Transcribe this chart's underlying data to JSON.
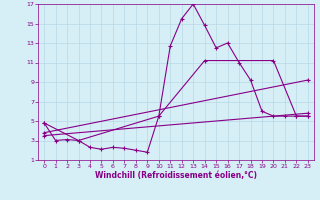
{
  "xlabel": "Windchill (Refroidissement éolien,°C)",
  "background_color": "#d6eef5",
  "line_color": "#880088",
  "grid_color": "#b8d8e8",
  "xlim": [
    -0.5,
    23.5
  ],
  "ylim": [
    1,
    17
  ],
  "xticks": [
    0,
    1,
    2,
    3,
    4,
    5,
    6,
    7,
    8,
    9,
    10,
    11,
    12,
    13,
    14,
    15,
    16,
    17,
    18,
    19,
    20,
    21,
    22,
    23
  ],
  "yticks": [
    1,
    3,
    5,
    7,
    9,
    11,
    13,
    15,
    17
  ],
  "series": [
    {
      "x": [
        0,
        1,
        2,
        3,
        4,
        5,
        6,
        7,
        8,
        9,
        10,
        11,
        12,
        13,
        14,
        15,
        16,
        17,
        18,
        19,
        20,
        21,
        22,
        23
      ],
      "y": [
        4.8,
        3.0,
        3.1,
        3.0,
        2.3,
        2.1,
        2.3,
        2.2,
        2.0,
        1.8,
        5.5,
        12.7,
        15.5,
        17.0,
        14.8,
        12.5,
        13.0,
        11.0,
        9.2,
        6.0,
        5.5,
        5.5,
        5.5,
        5.5
      ]
    },
    {
      "x": [
        0,
        3,
        10,
        14,
        20,
        22,
        23
      ],
      "y": [
        4.8,
        3.0,
        5.5,
        11.2,
        11.2,
        5.5,
        5.5
      ]
    },
    {
      "x": [
        0,
        23
      ],
      "y": [
        3.8,
        9.2
      ]
    },
    {
      "x": [
        0,
        23
      ],
      "y": [
        3.5,
        5.8
      ]
    }
  ]
}
